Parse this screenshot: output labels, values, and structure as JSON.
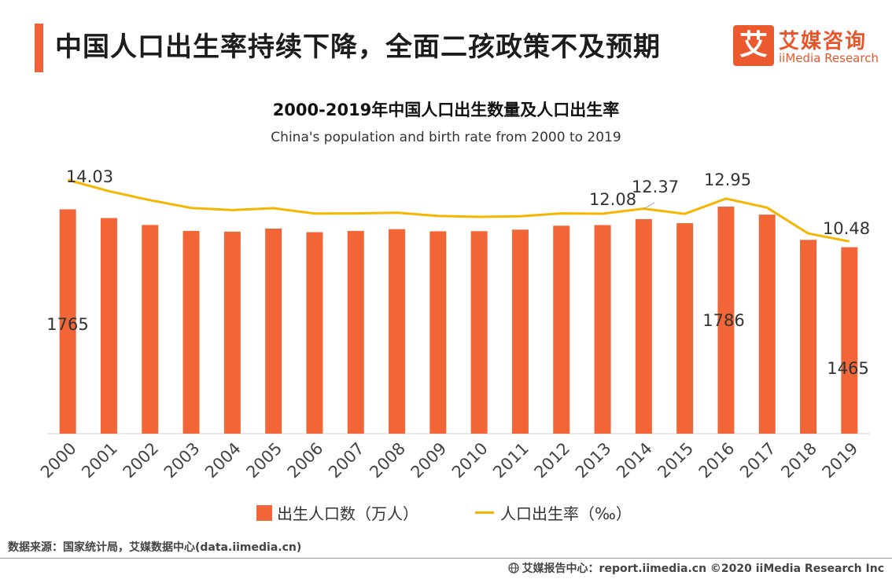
{
  "header": {
    "title": "中国人口出生率持续下降，全面二孩政策不及预期",
    "logo_mark": "艾",
    "logo_cn": "艾媒咨询",
    "logo_en": "iiMedia Research"
  },
  "chart_data": {
    "type": "bar+line",
    "title": "2000-2019年中国人口出生数量及人口出生率",
    "subtitle": "China's population and birth rate from 2000 to 2019",
    "categories": [
      "2000",
      "2001",
      "2002",
      "2003",
      "2004",
      "2005",
      "2006",
      "2007",
      "2008",
      "2009",
      "2010",
      "2011",
      "2012",
      "2013",
      "2014",
      "2015",
      "2016",
      "2017",
      "2018",
      "2019"
    ],
    "series": [
      {
        "name": "出生人口数（万人）",
        "type": "bar",
        "color": "#f26536",
        "values": [
          1765,
          1696,
          1641,
          1594,
          1588,
          1612,
          1584,
          1594,
          1608,
          1591,
          1592,
          1604,
          1635,
          1640,
          1687,
          1655,
          1786,
          1723,
          1523,
          1465
        ],
        "labels": {
          "2000": "1765",
          "2016": "1786",
          "2019": "1465"
        }
      },
      {
        "name": "人口出生率（‰）",
        "type": "line",
        "color": "#f5b500",
        "values": [
          14.03,
          13.38,
          12.86,
          12.41,
          12.29,
          12.4,
          12.09,
          12.1,
          12.14,
          11.95,
          11.9,
          11.93,
          12.1,
          12.08,
          12.37,
          12.07,
          12.95,
          12.43,
          10.94,
          10.48
        ],
        "labels": {
          "2000": "14.03",
          "2013": "12.08",
          "2014": "12.37",
          "2016": "12.95",
          "2019": "10.48"
        }
      }
    ]
  },
  "footer": {
    "source": "数据来源：国家统计局，艾媒数据中心(data.iimedia.cn)",
    "report": "艾媒报告中心：report.iimedia.cn  ©2020  iiMedia Research  Inc"
  }
}
